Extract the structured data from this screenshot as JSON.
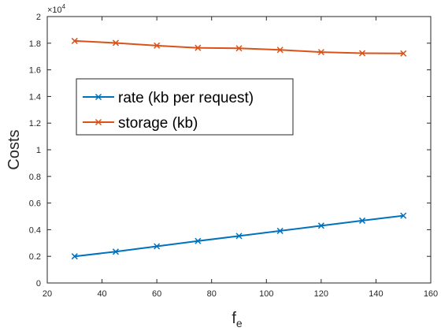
{
  "chart_data": {
    "type": "line",
    "xlabel": "f",
    "xlabel_sub": "e",
    "ylabel": "Costs",
    "y_multiplier": "×10",
    "y_multiplier_exp": "4",
    "xlim": [
      20,
      160
    ],
    "ylim": [
      0,
      2
    ],
    "x_ticks": [
      20,
      40,
      60,
      80,
      100,
      120,
      140,
      160
    ],
    "x_tick_labels": [
      "20",
      "40",
      "60",
      "80",
      "100",
      "120",
      "140",
      "160"
    ],
    "y_ticks": [
      0,
      0.2,
      0.4,
      0.6,
      0.8,
      1,
      1.2,
      1.4,
      1.6,
      1.8,
      2
    ],
    "y_tick_labels": [
      "0",
      "0.2",
      "0.4",
      "0.6",
      "0.8",
      "1",
      "1.2",
      "1.4",
      "1.6",
      "1.8",
      "2"
    ],
    "grid": false,
    "legend_position": "upper-left",
    "series": [
      {
        "name": "rate (kb per request)",
        "color": "#0072BD",
        "marker": "x",
        "x": [
          30,
          45,
          60,
          75,
          90,
          105,
          120,
          135,
          150
        ],
        "y": [
          0.2,
          0.235,
          0.275,
          0.315,
          0.353,
          0.391,
          0.43,
          0.468,
          0.505
        ]
      },
      {
        "name": "storage (kb)",
        "color": "#D95319",
        "marker": "x",
        "x": [
          30,
          45,
          60,
          75,
          90,
          105,
          120,
          135,
          150
        ],
        "y": [
          1.817,
          1.802,
          1.782,
          1.765,
          1.762,
          1.75,
          1.733,
          1.725,
          1.723
        ]
      }
    ]
  }
}
